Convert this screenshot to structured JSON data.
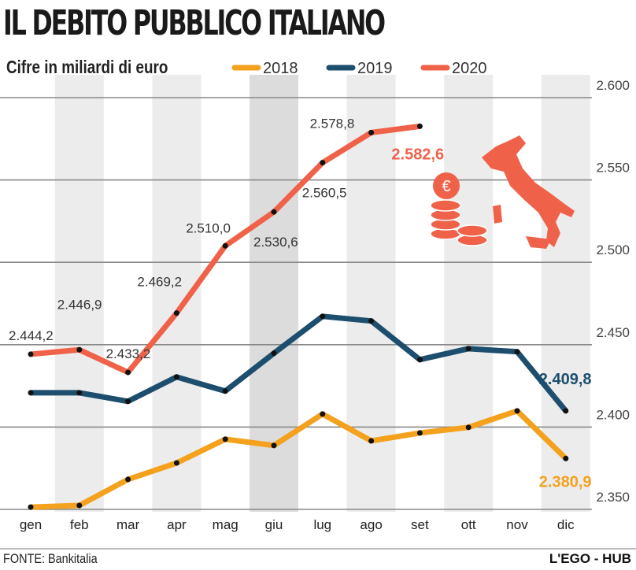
{
  "title": "IL DEBITO PUBBLICO ITALIANO",
  "subtitle": "Cifre in miliardi di euro",
  "footer": {
    "source": "FONTE: Bankitalia",
    "brand": "L'EGO - HUB"
  },
  "icons": [
    "italy-map-icon",
    "euro-coins-icon"
  ],
  "chart_data": {
    "type": "line",
    "categories": [
      "gen",
      "feb",
      "mar",
      "apr",
      "mag",
      "giu",
      "lug",
      "ago",
      "set",
      "ott",
      "nov",
      "dic"
    ],
    "ylim": [
      2350,
      2600
    ],
    "yticks": [
      2350,
      2400,
      2450,
      2500,
      2550,
      2600
    ],
    "ytick_labels": [
      "2.350",
      "2.400",
      "2.450",
      "2.500",
      "2.550",
      "2.600"
    ],
    "y_axis_position": "right",
    "grid": "horizontal",
    "legend_position": "top",
    "series": [
      {
        "name": "2018",
        "color": "#f4a21e",
        "values": [
          2351.4,
          2352.4,
          2368.2,
          2378.2,
          2392.6,
          2388.8,
          2407.9,
          2391.6,
          2396.4,
          2399.8,
          2409.8,
          2380.9
        ],
        "labels": [
          null,
          null,
          null,
          null,
          null,
          null,
          null,
          null,
          null,
          null,
          null,
          "2.380,9"
        ]
      },
      {
        "name": "2019",
        "color": "#1d4e6e",
        "values": [
          2420.8,
          2420.8,
          2415.6,
          2430.4,
          2421.8,
          2444.8,
          2467.2,
          2464.4,
          2440.9,
          2447.6,
          2445.7,
          2409.8
        ],
        "labels": [
          null,
          null,
          null,
          null,
          null,
          null,
          null,
          null,
          null,
          null,
          null,
          "2.409,8"
        ]
      },
      {
        "name": "2020",
        "color": "#ef6249",
        "values": [
          2444.2,
          2446.9,
          2433.2,
          2469.2,
          2510.0,
          2530.6,
          2560.5,
          2578.8,
          2582.6,
          null,
          null,
          null
        ],
        "labels": [
          "2.444,2",
          "2.446,9",
          "2.433,2",
          "2.469,2",
          "2.510,0",
          "2.530,6",
          "2.560,5",
          "2.578,8",
          "2.582,6",
          null,
          null,
          null
        ]
      }
    ]
  }
}
